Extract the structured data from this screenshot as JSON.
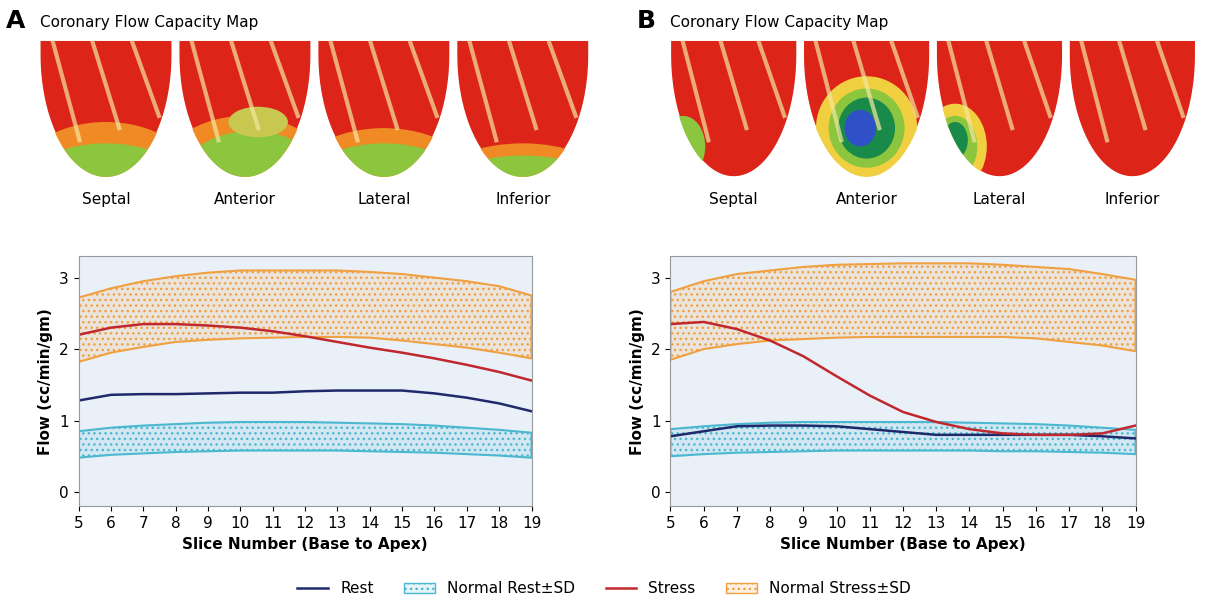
{
  "legend": "lower center",
  "chart_data": [
    {
      "type": "line",
      "panel": "A",
      "map_title": "Coronary Flow Capacity Map",
      "map_labels": [
        "Septal",
        "Anterior",
        "Lateral",
        "Inferior"
      ],
      "x_label": "Slice Number (Base to Apex)",
      "y_label": "Flow (cc/min/gm)",
      "x": [
        5,
        6,
        7,
        8,
        9,
        10,
        11,
        12,
        13,
        14,
        15,
        16,
        17,
        18,
        19
      ],
      "xlim": [
        5,
        19
      ],
      "xticks": [
        5,
        6,
        7,
        8,
        9,
        10,
        11,
        12,
        13,
        14,
        15,
        16,
        17,
        18,
        19
      ],
      "ylim": [
        -0.2,
        3.3
      ],
      "yticks": [
        0,
        1,
        2,
        3
      ],
      "series": [
        {
          "name": "Rest",
          "type": "line",
          "color": "#1f2a6b",
          "values": [
            1.28,
            1.36,
            1.37,
            1.37,
            1.38,
            1.39,
            1.39,
            1.41,
            1.42,
            1.42,
            1.42,
            1.38,
            1.32,
            1.24,
            1.13
          ]
        },
        {
          "name": "Normal Rest±SD",
          "type": "band",
          "color": "#4bb8d0",
          "lower": [
            0.48,
            0.52,
            0.54,
            0.56,
            0.57,
            0.58,
            0.58,
            0.58,
            0.58,
            0.57,
            0.56,
            0.55,
            0.53,
            0.51,
            0.48
          ],
          "upper": [
            0.85,
            0.9,
            0.93,
            0.95,
            0.97,
            0.98,
            0.98,
            0.98,
            0.97,
            0.96,
            0.95,
            0.93,
            0.9,
            0.87,
            0.83
          ]
        },
        {
          "name": "Stress",
          "type": "line",
          "color": "#c0282d",
          "values": [
            2.2,
            2.3,
            2.35,
            2.35,
            2.33,
            2.3,
            2.25,
            2.18,
            2.1,
            2.02,
            1.95,
            1.87,
            1.78,
            1.68,
            1.56
          ]
        },
        {
          "name": "Normal Stress±SD",
          "type": "band",
          "color": "#f0a040",
          "lower": [
            1.82,
            1.95,
            2.03,
            2.1,
            2.13,
            2.15,
            2.16,
            2.17,
            2.17,
            2.16,
            2.12,
            2.07,
            2.02,
            1.95,
            1.87
          ],
          "upper": [
            2.72,
            2.85,
            2.95,
            3.02,
            3.07,
            3.1,
            3.1,
            3.1,
            3.1,
            3.08,
            3.05,
            3.0,
            2.95,
            2.88,
            2.75
          ]
        }
      ]
    },
    {
      "type": "line",
      "panel": "B",
      "map_title": "Coronary Flow Capacity Map",
      "map_labels": [
        "Septal",
        "Anterior",
        "Lateral",
        "Inferior"
      ],
      "x_label": "Slice Number (Base to Apex)",
      "y_label": "Flow (cc/min/gm)",
      "x": [
        5,
        6,
        7,
        8,
        9,
        10,
        11,
        12,
        13,
        14,
        15,
        16,
        17,
        18,
        19
      ],
      "xlim": [
        5,
        19
      ],
      "xticks": [
        5,
        6,
        7,
        8,
        9,
        10,
        11,
        12,
        13,
        14,
        15,
        16,
        17,
        18,
        19
      ],
      "ylim": [
        -0.2,
        3.3
      ],
      "yticks": [
        0,
        1,
        2,
        3
      ],
      "series": [
        {
          "name": "Rest",
          "type": "line",
          "color": "#1f2a6b",
          "values": [
            0.78,
            0.85,
            0.92,
            0.93,
            0.93,
            0.92,
            0.88,
            0.84,
            0.8,
            0.8,
            0.8,
            0.8,
            0.8,
            0.78,
            0.75
          ]
        },
        {
          "name": "Normal Rest±SD",
          "type": "band",
          "color": "#4bb8d0",
          "lower": [
            0.5,
            0.53,
            0.55,
            0.56,
            0.57,
            0.58,
            0.58,
            0.58,
            0.58,
            0.58,
            0.57,
            0.57,
            0.56,
            0.55,
            0.53
          ],
          "upper": [
            0.88,
            0.92,
            0.95,
            0.97,
            0.98,
            0.98,
            0.98,
            0.98,
            0.98,
            0.97,
            0.96,
            0.95,
            0.93,
            0.9,
            0.87
          ]
        },
        {
          "name": "Stress",
          "type": "line",
          "color": "#c0282d",
          "values": [
            2.35,
            2.38,
            2.28,
            2.12,
            1.9,
            1.62,
            1.35,
            1.12,
            0.98,
            0.88,
            0.82,
            0.8,
            0.8,
            0.82,
            0.93
          ]
        },
        {
          "name": "Normal Stress±SD",
          "type": "band",
          "color": "#f0a040",
          "lower": [
            1.85,
            2.0,
            2.07,
            2.12,
            2.14,
            2.16,
            2.17,
            2.17,
            2.17,
            2.17,
            2.17,
            2.15,
            2.1,
            2.05,
            1.97
          ],
          "upper": [
            2.8,
            2.95,
            3.05,
            3.1,
            3.15,
            3.18,
            3.19,
            3.2,
            3.2,
            3.2,
            3.18,
            3.15,
            3.12,
            3.05,
            2.97
          ]
        }
      ]
    }
  ]
}
